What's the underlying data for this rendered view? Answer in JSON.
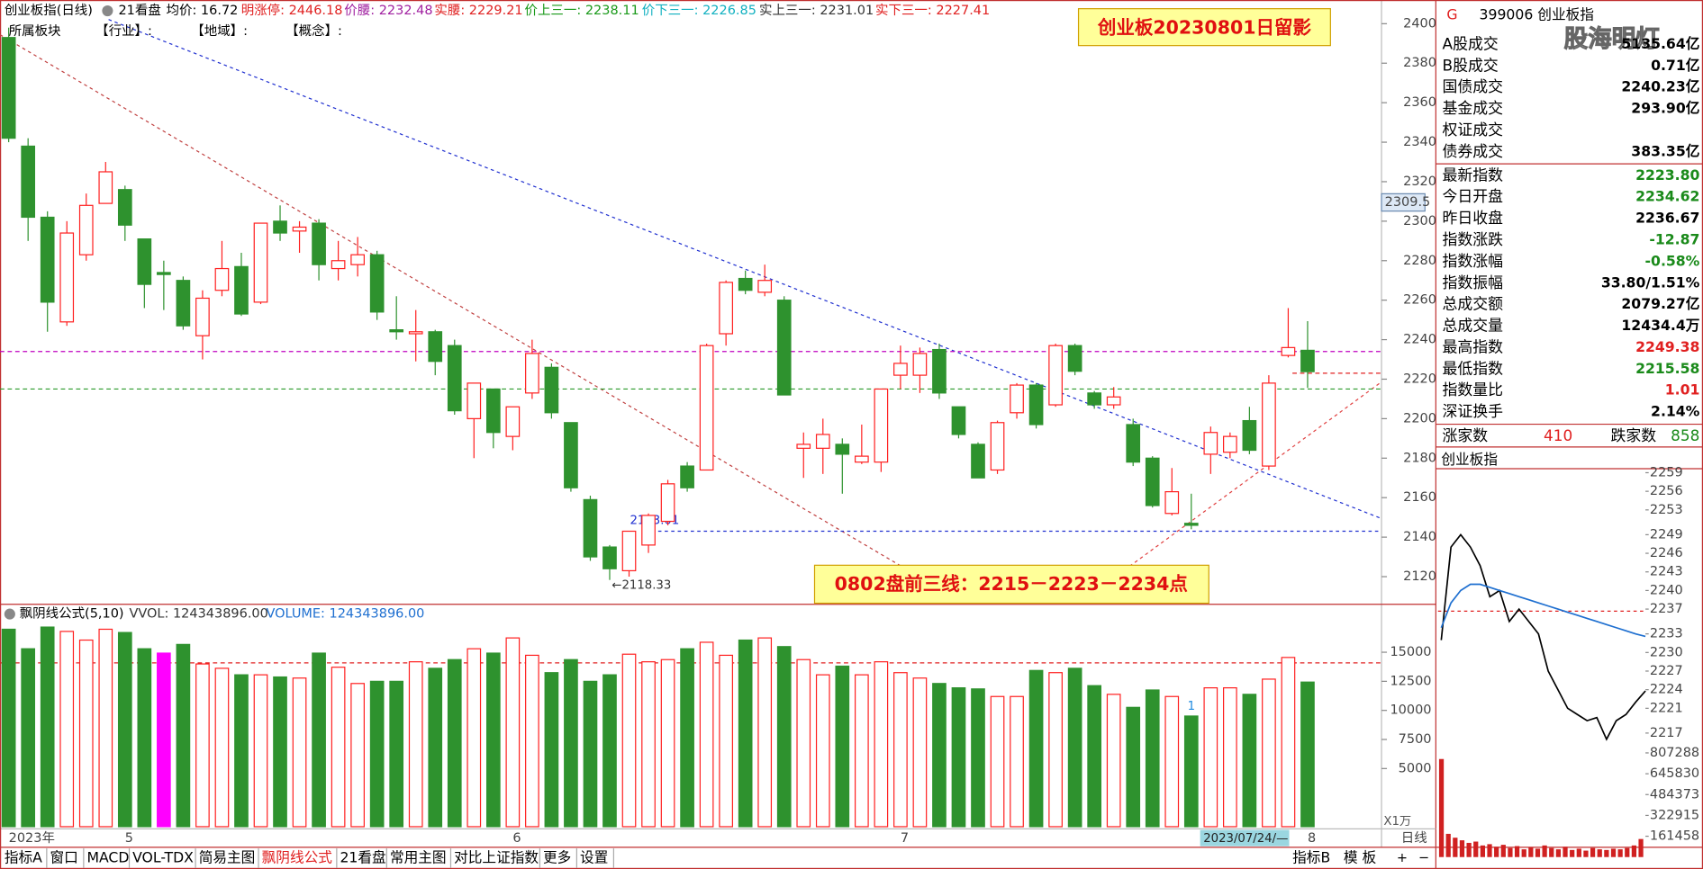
{
  "header": {
    "title": "创业板指(日线)",
    "tab": "21看盘",
    "items": [
      "均价: 16.72",
      "明涨停: 2446.18",
      "价腰: 2232.48",
      "实腰: 2229.21",
      "价上三一: 2238.11",
      "价下三一: 2226.85",
      "实上三一: 2231.01",
      "实下三一: 2227.41"
    ],
    "sector_label": "所属板块",
    "sector_items": [
      "【行业】:",
      "【地域】:",
      "【概念】:"
    ]
  },
  "caption": "创业板20230801日留影",
  "note": "0802盘前三线：2215－2223－2234点",
  "chart_data": [
    {
      "type": "candlestick",
      "categories": [
        "2023年",
        null,
        null,
        null,
        null,
        null,
        "5",
        null,
        null,
        null,
        null,
        null,
        null,
        null,
        null,
        null,
        null,
        null,
        null,
        null,
        null,
        null,
        null,
        null,
        null,
        null,
        "6",
        null,
        null,
        null,
        null,
        null,
        null,
        null,
        null,
        null,
        null,
        null,
        null,
        null,
        null,
        null,
        null,
        null,
        null,
        null,
        "7",
        null,
        null,
        null,
        null,
        null,
        null,
        null,
        null,
        null,
        null,
        null,
        null,
        null,
        null,
        null,
        null,
        null,
        null,
        null,
        null,
        "8"
      ],
      "open": [
        2393,
        2338,
        2302,
        2249,
        2283,
        2309,
        2316,
        2291,
        2274,
        2270,
        2242,
        2265,
        2277,
        2259,
        2300,
        2295,
        2299,
        2276,
        2278,
        2283,
        2245,
        2243,
        2244,
        2237,
        2200,
        2215,
        2191,
        2213,
        2226,
        2198,
        2159,
        2135,
        2123,
        2136,
        2148,
        2176,
        2174,
        2243,
        2271,
        2264,
        2260,
        2185,
        2185,
        2187,
        2178,
        2178,
        2222,
        2222,
        2235,
        2206,
        2187,
        2174,
        2203,
        2217,
        2207,
        2237,
        2213,
        2207,
        2197,
        2180,
        2152,
        2147,
        2182,
        2183,
        2199,
        2176,
        2232,
        2234.62
      ],
      "high": [
        2398,
        2342,
        2305,
        2300,
        2314,
        2330,
        2318,
        2291,
        2280,
        2272,
        2265,
        2290,
        2284,
        2299,
        2308,
        2300,
        2301,
        2290,
        2292,
        2285,
        2262,
        2255,
        2245,
        2240,
        2218,
        2215,
        2206,
        2240,
        2228,
        2198,
        2161,
        2136,
        2143,
        2152,
        2169,
        2178,
        2238,
        2270,
        2275,
        2278,
        2262,
        2193,
        2200,
        2190,
        2197,
        2215,
        2237,
        2236,
        2238,
        2206,
        2188,
        2199,
        2218,
        2218,
        2238,
        2238,
        2214,
        2216,
        2200,
        2181,
        2175,
        2162,
        2196,
        2193,
        2206,
        2222,
        2256,
        2249.38
      ],
      "low": [
        2340,
        2290,
        2244,
        2247,
        2280,
        2309,
        2290,
        2256,
        2255,
        2245,
        2230,
        2262,
        2252,
        2258,
        2290,
        2284,
        2270,
        2270,
        2272,
        2250,
        2240,
        2229,
        2222,
        2202,
        2180,
        2185,
        2184,
        2210,
        2200,
        2163,
        2128,
        2118.33,
        2120,
        2132,
        2146,
        2163,
        2174,
        2237,
        2263,
        2262,
        2212,
        2170,
        2172,
        2162,
        2177,
        2173,
        2215,
        2213,
        2210,
        2190,
        2170,
        2172,
        2200,
        2195,
        2206,
        2222,
        2205,
        2205,
        2176,
        2155,
        2151,
        2144,
        2172,
        2180,
        2182,
        2174,
        2231,
        2215.58
      ],
      "close": [
        2342,
        2302,
        2259,
        2294,
        2308,
        2325,
        2298,
        2268,
        2273,
        2247,
        2261,
        2276,
        2253,
        2299,
        2294,
        2297,
        2278,
        2280,
        2283,
        2254,
        2244,
        2244,
        2229,
        2204,
        2218,
        2193,
        2206,
        2233,
        2203,
        2165,
        2130,
        2124,
        2143,
        2151,
        2167,
        2165,
        2237,
        2269,
        2265,
        2270,
        2212,
        2187,
        2192,
        2182,
        2181,
        2215,
        2228,
        2233,
        2213,
        2192,
        2170,
        2198,
        2217,
        2197,
        2237,
        2224,
        2207,
        2211,
        2178,
        2156,
        2163,
        2146,
        2193,
        2191,
        2184,
        2218,
        2236,
        2223.8
      ],
      "up_color": "#ff2020",
      "down_color": "#2e922e",
      "ylim": [
        2106,
        2412
      ],
      "yticks": [
        2400,
        2380,
        2360,
        2340,
        2320,
        2300,
        2280,
        2260,
        2240,
        2220,
        2200,
        2180,
        2160,
        2140,
        2120
      ],
      "levels": [
        {
          "value": 2234,
          "color": "#c000c0"
        },
        {
          "value": 2215,
          "color": "#2a9a2a"
        },
        {
          "value": 2223,
          "color": "#e02020"
        }
      ],
      "support": 2143.01,
      "low_label": "←2118.33",
      "cursor_price": 2309.5,
      "cursor_date": "2023/07/24/—"
    },
    {
      "type": "bar",
      "name": "飘阴线公式(5,10)",
      "legend": [
        "VVOL: 124343896.00",
        "VOLUME: 124343896.00"
      ],
      "unit": "X1万",
      "values": [
        16978,
        15300,
        17164,
        16791,
        16045,
        16978,
        16698,
        15300,
        14925,
        15672,
        13993,
        13619,
        13060,
        13060,
        12873,
        12780,
        14925,
        13713,
        12313,
        12500,
        12500,
        14179,
        13619,
        14366,
        15300,
        14925,
        16231,
        14739,
        13246,
        14366,
        12500,
        13060,
        14832,
        14179,
        14366,
        15300,
        15858,
        14739,
        16045,
        16231,
        15485,
        14366,
        13060,
        13806,
        13060,
        14179,
        13246,
        12780,
        12313,
        11940,
        11847,
        11194,
        11194,
        13433,
        13246,
        13619,
        12127,
        11381,
        10261,
        11754,
        11194,
        9515,
        11940,
        11940,
        11381,
        12687,
        14552,
        12434.4
      ],
      "highlight": {
        "index": 8,
        "color": "#ff00ff"
      },
      "ref_line": 14085,
      "marker": "1",
      "ylim": [
        0,
        19030
      ],
      "yticks": [
        15000,
        12500,
        10000,
        7500,
        5000
      ]
    },
    {
      "type": "line",
      "title": "创业板指",
      "series": [
        {
          "name": "price",
          "color": "#000000",
          "values": [
            2232,
            2247,
            2249,
            2247,
            2244,
            2239,
            2240,
            2235,
            2237,
            2235,
            2233,
            2227,
            2224,
            2221,
            2220,
            2219,
            2219.5,
            2216,
            2219,
            2220,
            2222,
            2223.8
          ]
        },
        {
          "name": "average",
          "color": "#1e6fd0",
          "values": [
            2234,
            2238,
            2240,
            2241,
            2241,
            2240.5,
            2240,
            2239.5,
            2239,
            2238.5,
            2238,
            2237.5,
            2237,
            2236.5,
            2236,
            2235.5,
            2235,
            2234.5,
            2234,
            2233.5,
            2233,
            2232.6
          ]
        }
      ],
      "ref_line": 2236.67,
      "ylim": [
        2214.5,
        2260
      ],
      "yticks": [
        2259,
        2256,
        2253,
        2249,
        2246,
        2243,
        2240,
        2237,
        2233,
        2230,
        2227,
        2224,
        2221,
        2217
      ]
    },
    {
      "type": "bar",
      "color": "#d02020",
      "values": [
        760000,
        180000,
        150000,
        130000,
        110000,
        120000,
        90000,
        100000,
        80000,
        95000,
        70000,
        85000,
        60000,
        75000,
        65000,
        90000,
        70000,
        60000,
        80000,
        55000,
        65000,
        50000,
        70000,
        60000,
        55000,
        65000,
        60000,
        70000,
        90000,
        140000
      ],
      "ylim": [
        0,
        807288
      ],
      "yticks": [
        807288,
        645830,
        484373,
        322915,
        161458
      ]
    }
  ],
  "right_panel": {
    "flag": "G",
    "code": "399006 创业板指",
    "watermark": "股海明灯",
    "rows": [
      {
        "label": "A股成交",
        "value": "5135.64亿",
        "color": "#000"
      },
      {
        "label": "B股成交",
        "value": "0.71亿",
        "color": "#000"
      },
      {
        "label": "国债成交",
        "value": "2240.23亿",
        "color": "#000"
      },
      {
        "label": "基金成交",
        "value": "293.90亿",
        "color": "#000"
      },
      {
        "label": "权证成交",
        "value": "",
        "color": "#000"
      },
      {
        "label": "债券成交",
        "value": "383.35亿",
        "color": "#000"
      },
      {
        "label": "最新指数",
        "value": "2223.80",
        "color": "#1a8a1a"
      },
      {
        "label": "今日开盘",
        "value": "2234.62",
        "color": "#1a8a1a"
      },
      {
        "label": "昨日收盘",
        "value": "2236.67",
        "color": "#000"
      },
      {
        "label": "指数涨跌",
        "value": "-12.87",
        "color": "#1a8a1a"
      },
      {
        "label": "指数涨幅",
        "value": "-0.58%",
        "color": "#1a8a1a"
      },
      {
        "label": "指数振幅",
        "value": "33.80/1.51%",
        "color": "#000"
      },
      {
        "label": "总成交额",
        "value": "2079.27亿",
        "color": "#000"
      },
      {
        "label": "总成交量",
        "value": "12434.4万",
        "color": "#000"
      },
      {
        "label": "最高指数",
        "value": "2249.38",
        "color": "#e02020"
      },
      {
        "label": "最低指数",
        "value": "2215.58",
        "color": "#1a8a1a"
      },
      {
        "label": "指数量比",
        "value": "1.01",
        "color": "#e02020"
      },
      {
        "label": "深证换手",
        "value": "2.14%",
        "color": "#000"
      }
    ],
    "breadth": [
      "涨家数",
      "410",
      "跌家数",
      "858"
    ]
  },
  "toolbar": {
    "left": [
      "指标A",
      "窗口",
      "MACD",
      "VOL-TDX",
      "简易主图",
      "飘阴线公式",
      "21看盘",
      "常用主图",
      "对比上证指数",
      "更多",
      "设置"
    ],
    "right": [
      "指标B",
      "模 板"
    ],
    "period": "日线",
    "zoom": [
      "+",
      "−"
    ]
  }
}
